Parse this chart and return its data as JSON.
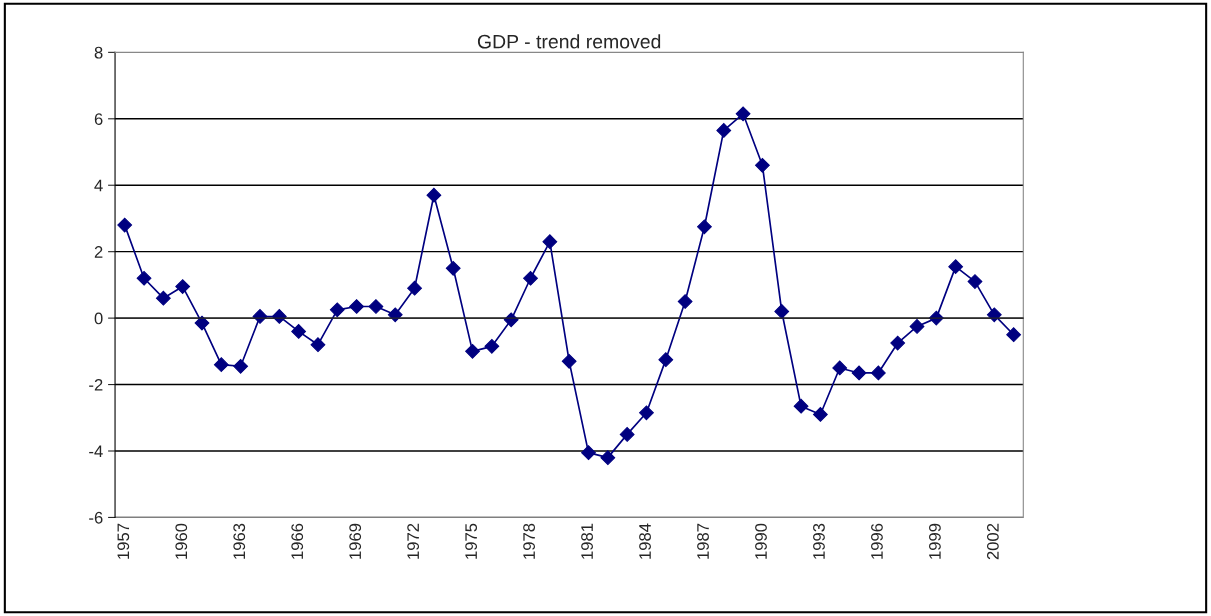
{
  "chart_data": {
    "type": "line",
    "title": "GDP - trend removed",
    "categories": [
      "1957",
      null,
      null,
      "1960",
      null,
      null,
      "1963",
      null,
      null,
      "1966",
      null,
      null,
      "1969",
      null,
      null,
      "1972",
      null,
      null,
      "1975",
      null,
      null,
      "1978",
      null,
      null,
      "1981",
      null,
      null,
      "1984",
      null,
      null,
      "1987",
      null,
      null,
      "1990",
      null,
      null,
      "1993",
      null,
      null,
      "1996",
      null,
      null,
      "1999",
      null,
      null,
      "2002",
      null
    ],
    "series": [
      {
        "color": "#000080",
        "values": [
          2.8,
          1.2,
          0.6,
          0.95,
          -0.15,
          -1.4,
          -1.45,
          0.05,
          0.05,
          -0.4,
          -0.8,
          0.25,
          0.35,
          0.35,
          0.1,
          0.9,
          3.7,
          1.5,
          -1.0,
          -0.85,
          -0.05,
          1.2,
          2.3,
          -1.3,
          -4.05,
          -4.2,
          -3.5,
          -2.85,
          -1.25,
          0.5,
          2.75,
          5.65,
          6.15,
          4.6,
          0.2,
          -2.65,
          -2.9,
          -1.5,
          -1.65,
          -1.65,
          -0.75,
          -0.25,
          0.0,
          1.55,
          1.1,
          0.1,
          -0.5
        ]
      }
    ],
    "ylim": [
      -6,
      8
    ],
    "yticks": [
      -6,
      -4,
      -2,
      0,
      2,
      4,
      6,
      8
    ],
    "grid": "y",
    "legend": false,
    "marker": "diamond",
    "line_style": "solid"
  }
}
